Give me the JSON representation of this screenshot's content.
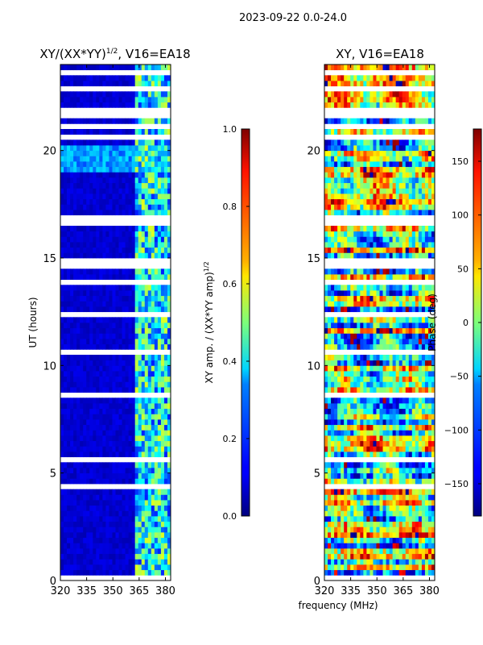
{
  "page": {
    "suptitle": "2023-09-22 0.0-24.0"
  },
  "chart_data": [
    {
      "type": "heatmap",
      "id": "left",
      "title": "XY/(XX*YY)^(1/2), V16=EA18",
      "title_main": "XY/(XX*YY)",
      "title_exp": "1/2",
      "title_tail": ", V16=EA18",
      "xlabel": "",
      "ylabel": "UT (hours)",
      "x_range": [
        320,
        383
      ],
      "y_range": [
        0,
        24
      ],
      "x_ticks": [
        320,
        335,
        350,
        365,
        380
      ],
      "y_ticks": [
        0,
        5,
        10,
        15,
        20
      ],
      "colorbar": {
        "label": "XY amp. / (XX*YY amp)^(1/2)",
        "label_main": "XY amp. / (XX*YY amp)",
        "label_exp": "1/2",
        "range": [
          0.0,
          1.0
        ],
        "ticks": [
          "0.0",
          "0.2",
          "0.4",
          "0.6",
          "0.8",
          "1.0"
        ],
        "tick_values": [
          0.0,
          0.2,
          0.4,
          0.6,
          0.8,
          1.0
        ]
      },
      "gap_bands_hours": [
        [
          14.4,
          15.0
        ],
        [
          16.6,
          17.0
        ],
        [
          23.4,
          23.8
        ]
      ],
      "bright_band_freq_MHz": [
        363,
        383
      ],
      "bright_band_hours": [
        19.0,
        20.3
      ]
    },
    {
      "type": "heatmap",
      "id": "right",
      "title": "XY, V16=EA18",
      "xlabel": "frequency (MHz)",
      "ylabel": "",
      "x_range": [
        320,
        383
      ],
      "y_range": [
        0,
        24
      ],
      "x_ticks": [
        320,
        335,
        350,
        365,
        380
      ],
      "y_ticks": [
        0,
        5,
        10,
        15,
        20
      ],
      "colorbar": {
        "label": "Phase (deg)",
        "range": [
          -180,
          180
        ],
        "ticks": [
          "150",
          "100",
          "50",
          "0",
          "−50",
          "−100",
          "−150"
        ],
        "tick_values": [
          150,
          100,
          50,
          0,
          -50,
          -100,
          -150
        ]
      },
      "gap_bands_hours": [
        [
          14.4,
          15.0
        ],
        [
          16.6,
          17.0
        ],
        [
          23.4,
          23.8
        ]
      ]
    }
  ]
}
